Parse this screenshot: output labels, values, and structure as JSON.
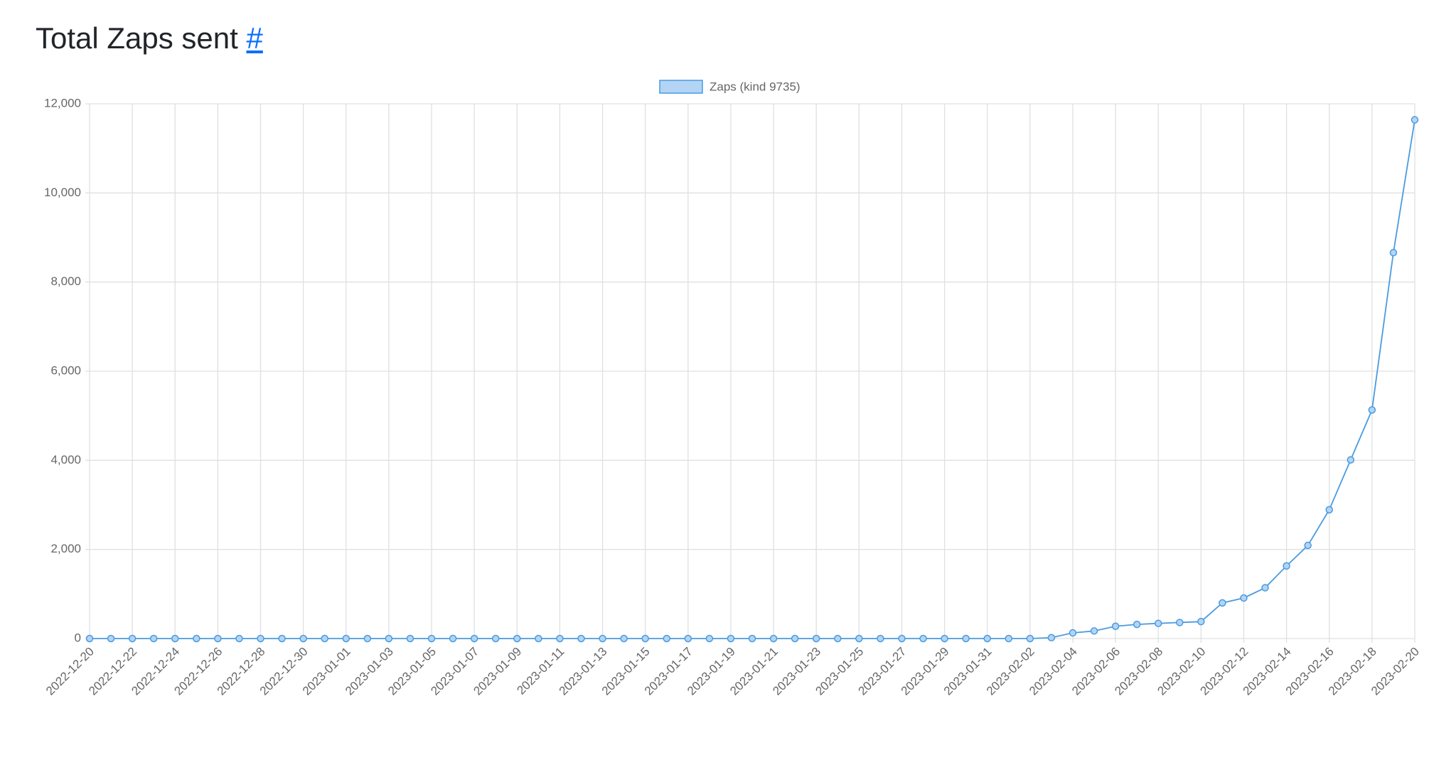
{
  "header": {
    "title": "Total Zaps sent",
    "link": "#"
  },
  "chart_data": {
    "type": "line",
    "categories": [
      "2022-12-20",
      null,
      "2022-12-22",
      null,
      "2022-12-24",
      null,
      "2022-12-26",
      null,
      "2022-12-28",
      null,
      "2022-12-30",
      null,
      "2023-01-01",
      null,
      "2023-01-03",
      null,
      "2023-01-05",
      null,
      "2023-01-07",
      null,
      "2023-01-09",
      null,
      "2023-01-11",
      null,
      "2023-01-13",
      null,
      "2023-01-15",
      null,
      "2023-01-17",
      null,
      "2023-01-19",
      null,
      "2023-01-21",
      null,
      "2023-01-23",
      null,
      "2023-01-25",
      null,
      "2023-01-27",
      null,
      "2023-01-29",
      null,
      "2023-01-31",
      null,
      "2023-02-02",
      null,
      "2023-02-04",
      null,
      "2023-02-06",
      null,
      "2023-02-08",
      null,
      "2023-02-10",
      null,
      "2023-02-12",
      null,
      "2023-02-14",
      null,
      "2023-02-16",
      null,
      "2023-02-18",
      null,
      "2023-02-20"
    ],
    "series": [
      {
        "name": "Zaps (kind 9735)",
        "color": "#4a9be0",
        "fill": "#b3d4f5",
        "values": [
          0,
          0,
          0,
          0,
          0,
          0,
          0,
          0,
          0,
          0,
          0,
          0,
          0,
          0,
          0,
          0,
          0,
          0,
          0,
          0,
          0,
          0,
          0,
          0,
          0,
          0,
          0,
          0,
          0,
          0,
          0,
          0,
          0,
          0,
          0,
          0,
          0,
          0,
          0,
          0,
          0,
          0,
          0,
          0,
          0,
          20,
          127,
          170,
          275,
          317,
          340,
          360,
          380,
          800,
          910,
          1140,
          1630,
          2090,
          2890,
          4010,
          5130,
          8660,
          11640
        ]
      }
    ],
    "ylim": [
      0,
      12000
    ],
    "yticks": [
      0,
      {
        "value": 2000,
        "label": "2,000"
      },
      {
        "value": 4000,
        "label": "4,000"
      },
      {
        "value": 6000,
        "label": "6,000"
      },
      {
        "value": 8000,
        "label": "8,000"
      },
      {
        "value": 10000,
        "label": "10,000"
      },
      {
        "value": 12000,
        "label": "12,000"
      }
    ],
    "grid": true
  }
}
